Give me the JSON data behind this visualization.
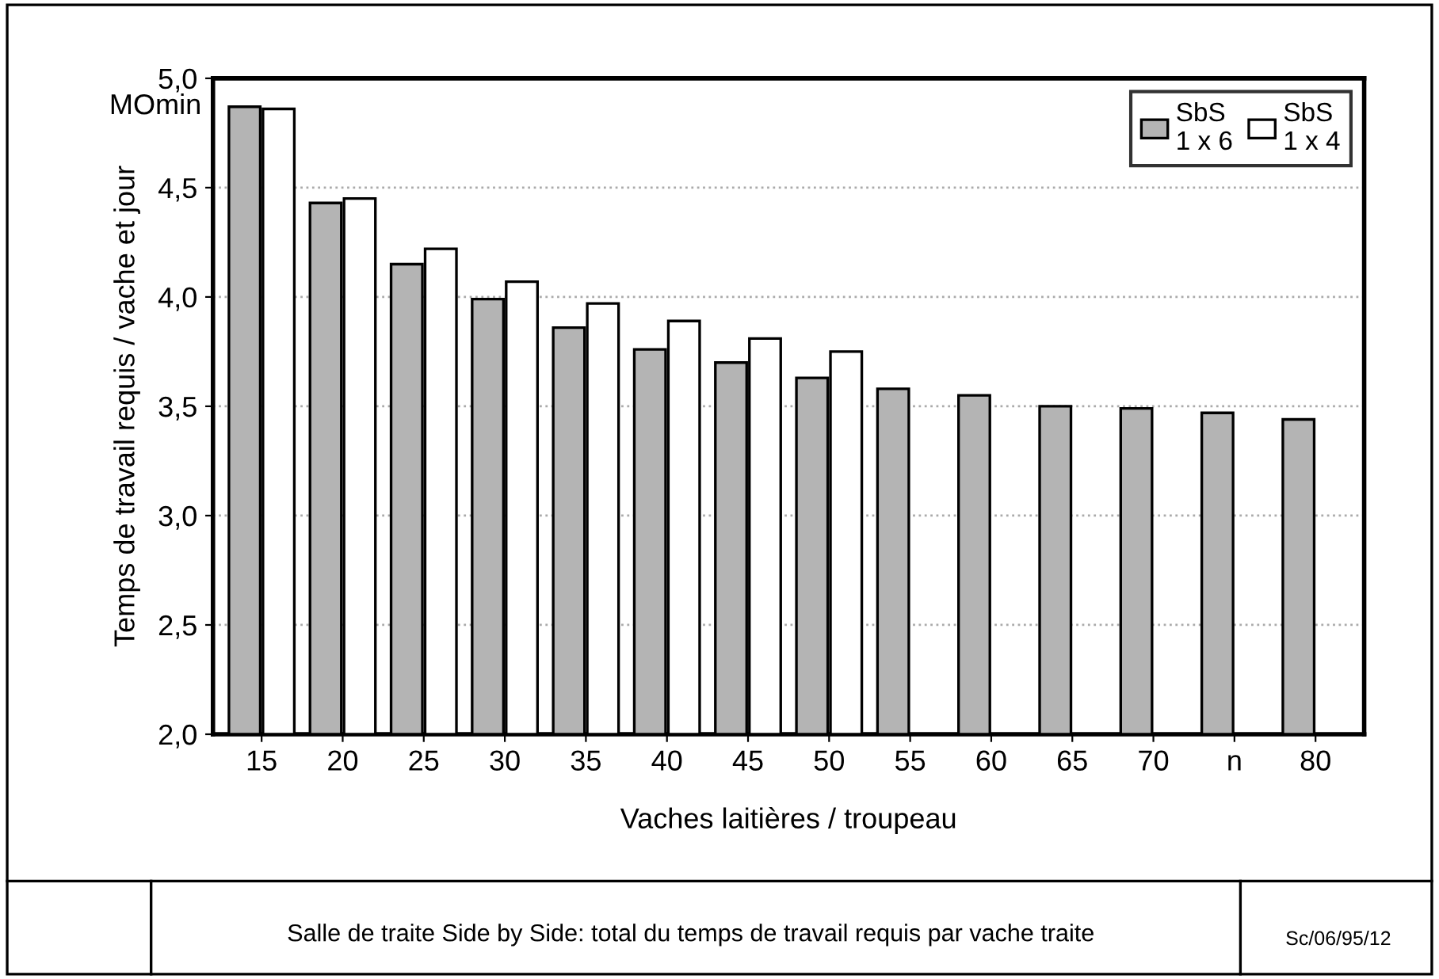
{
  "chart_data": {
    "type": "bar",
    "ylabel": "Temps de travail requis / vache et jour",
    "xlabel": "Vaches laitières / troupeau",
    "categories": [
      "15",
      "20",
      "25",
      "30",
      "35",
      "40",
      "45",
      "50",
      "55",
      "60",
      "65",
      "70",
      "n",
      "80"
    ],
    "series": [
      {
        "name": "SbS\n1 x 6",
        "color": "#b4b4b4",
        "values": [
          4.87,
          4.43,
          4.15,
          3.99,
          3.86,
          3.76,
          3.7,
          3.63,
          3.58,
          3.55,
          3.5,
          3.49,
          3.47,
          3.44
        ]
      },
      {
        "name": "SbS\n1 x 4",
        "color": "#ffffff",
        "values": [
          4.86,
          4.45,
          4.22,
          4.07,
          3.97,
          3.89,
          3.81,
          3.75,
          null,
          null,
          null,
          null,
          null,
          null
        ]
      }
    ],
    "ylim": [
      2.0,
      5.0
    ],
    "yticks": [
      {
        "value": 2.0,
        "label": "2,0"
      },
      {
        "value": 2.5,
        "label": "2,5"
      },
      {
        "value": 3.0,
        "label": "3,0"
      },
      {
        "value": 3.5,
        "label": "3,5"
      },
      {
        "value": 4.0,
        "label": "4,0"
      },
      {
        "value": 4.5,
        "label": "4,5"
      },
      {
        "value": 5.0,
        "label": "5,0"
      }
    ],
    "grid": "y",
    "legend": "top right",
    "annotations": [
      "MOmin",
      "Salle de traite Side by Side: total du temps de travail requis par vache traite",
      "Sc/06/95/12"
    ]
  }
}
